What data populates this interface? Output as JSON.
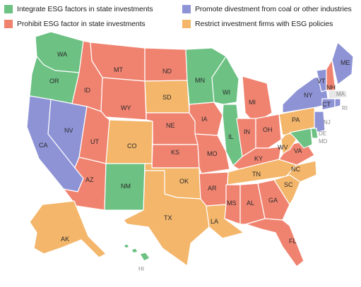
{
  "colors": {
    "integrate": "#6cc183",
    "prohibit": "#f08370",
    "promote": "#8e93d6",
    "restrict": "#f3b66b",
    "none": "#e6e6e6"
  },
  "legend": [
    {
      "key": "integrate",
      "label": "Integrate ESG factors in state investments"
    },
    {
      "key": "prohibit",
      "label": "Prohibit ESG factor in state investments"
    },
    {
      "key": "promote",
      "label": "Promote divestment from coal or other industries"
    },
    {
      "key": "restrict",
      "label": "Restrict investment firms with ESG policies"
    }
  ],
  "states": {
    "WA": {
      "label": "WA",
      "category": "integrate"
    },
    "OR": {
      "label": "OR",
      "category": "integrate"
    },
    "CA": {
      "label": "CA",
      "category": "promote"
    },
    "NV": {
      "label": "NV",
      "category": "promote"
    },
    "ID": {
      "label": "ID",
      "category": "prohibit"
    },
    "MT": {
      "label": "MT",
      "category": "prohibit"
    },
    "WY": {
      "label": "WY",
      "category": "prohibit"
    },
    "UT": {
      "label": "UT",
      "category": "prohibit"
    },
    "AZ": {
      "label": "AZ",
      "category": "prohibit"
    },
    "CO": {
      "label": "CO",
      "category": "restrict"
    },
    "NM": {
      "label": "NM",
      "category": "integrate"
    },
    "ND": {
      "label": "ND",
      "category": "prohibit"
    },
    "SD": {
      "label": "SD",
      "category": "restrict"
    },
    "NE": {
      "label": "NE",
      "category": "prohibit"
    },
    "KS": {
      "label": "KS",
      "category": "prohibit"
    },
    "OK": {
      "label": "OK",
      "category": "restrict"
    },
    "TX": {
      "label": "TX",
      "category": "restrict"
    },
    "MN": {
      "label": "MN",
      "category": "integrate"
    },
    "IA": {
      "label": "IA",
      "category": "prohibit"
    },
    "MO": {
      "label": "MO",
      "category": "prohibit"
    },
    "AR": {
      "label": "AR",
      "category": "prohibit"
    },
    "LA": {
      "label": "LA",
      "category": "restrict"
    },
    "WI": {
      "label": "WI",
      "category": "integrate"
    },
    "IL": {
      "label": "IL",
      "category": "integrate"
    },
    "MI": {
      "label": "MI",
      "category": "prohibit"
    },
    "IN": {
      "label": "IN",
      "category": "prohibit"
    },
    "OH": {
      "label": "OH",
      "category": "prohibit"
    },
    "KY": {
      "label": "KY",
      "category": "prohibit"
    },
    "TN": {
      "label": "TN",
      "category": "restrict"
    },
    "MS": {
      "label": "MS",
      "category": "prohibit"
    },
    "AL": {
      "label": "AL",
      "category": "prohibit"
    },
    "GA": {
      "label": "GA",
      "category": "prohibit"
    },
    "FL": {
      "label": "FL",
      "category": "prohibit"
    },
    "SC": {
      "label": "SC",
      "category": "restrict"
    },
    "NC": {
      "label": "NC",
      "category": "restrict"
    },
    "VA": {
      "label": "VA",
      "category": "prohibit"
    },
    "WV": {
      "label": "WV",
      "category": "restrict"
    },
    "PA": {
      "label": "PA",
      "category": "restrict"
    },
    "NY": {
      "label": "NY",
      "category": "promote"
    },
    "VT": {
      "label": "VT",
      "category": "promote"
    },
    "NH": {
      "label": "NH",
      "category": "prohibit"
    },
    "ME": {
      "label": "ME",
      "category": "promote"
    },
    "MA": {
      "label": "MA",
      "category": "none"
    },
    "CT": {
      "label": "CT",
      "category": "promote"
    },
    "RI": {
      "label": "RI",
      "category": "promote"
    },
    "NJ": {
      "label": "NJ",
      "category": "promote"
    },
    "DE": {
      "label": "DE",
      "category": "integrate"
    },
    "MD": {
      "label": "MD",
      "category": "integrate"
    },
    "AK": {
      "label": "AK",
      "category": "restrict"
    },
    "HI": {
      "label": "HI",
      "category": "integrate"
    }
  }
}
